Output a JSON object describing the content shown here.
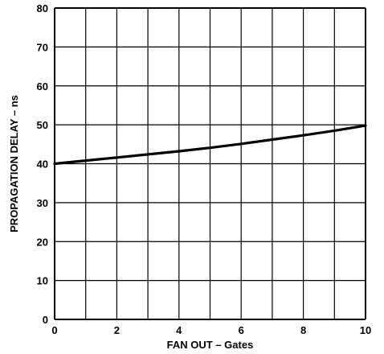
{
  "chart_data": {
    "type": "line",
    "title": "",
    "xlabel": "FAN OUT  – Gates",
    "ylabel": "PROPAGATION DELAY – ns",
    "xlim": [
      0,
      10
    ],
    "ylim": [
      0,
      80
    ],
    "x_ticks": [
      0,
      2,
      4,
      6,
      8,
      10
    ],
    "y_ticks": [
      0,
      10,
      20,
      30,
      40,
      50,
      60,
      70,
      80
    ],
    "x_grid": [
      0,
      1,
      2,
      3,
      4,
      5,
      6,
      7,
      8,
      9,
      10
    ],
    "y_grid": [
      0,
      10,
      20,
      30,
      40,
      50,
      60,
      70,
      80
    ],
    "grid": true,
    "series": [
      {
        "x": [
          0,
          1,
          2,
          3,
          4,
          5,
          6,
          7,
          8,
          9,
          10
        ],
        "values": [
          40.0,
          40.8,
          41.6,
          42.4,
          43.2,
          44.1,
          45.1,
          46.2,
          47.3,
          48.5,
          49.8
        ]
      }
    ],
    "colors": {
      "line": "#000000",
      "grid": "#000000",
      "background": "#ffffff"
    }
  }
}
